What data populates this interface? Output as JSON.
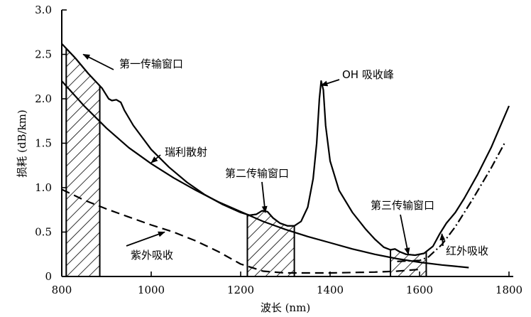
{
  "chart_data": {
    "type": "line",
    "xlabel": "波长 (nm)",
    "ylabel": "损耗 (dB/km)",
    "xlim": [
      800,
      1800
    ],
    "ylim": [
      0,
      3.0
    ],
    "x_ticks": [
      "800",
      "1000",
      "1200",
      "1400",
      "1600",
      "1800"
    ],
    "y_ticks": [
      "0",
      "0.5",
      "1.0",
      "1.5",
      "2.0",
      "2.5",
      "3.0"
    ],
    "grid": false,
    "series": [
      {
        "name": "",
        "style": "solid",
        "points": [
          [
            800,
            2.62
          ],
          [
            830,
            2.46
          ],
          [
            860,
            2.28
          ],
          [
            890,
            2.12
          ],
          [
            905,
            2.0
          ],
          [
            912,
            1.98
          ],
          [
            922,
            1.99
          ],
          [
            932,
            1.96
          ],
          [
            940,
            1.87
          ],
          [
            960,
            1.7
          ],
          [
            1000,
            1.43
          ],
          [
            1040,
            1.23
          ],
          [
            1080,
            1.06
          ],
          [
            1120,
            0.92
          ],
          [
            1160,
            0.81
          ],
          [
            1200,
            0.72
          ],
          [
            1220,
            0.69
          ],
          [
            1235,
            0.7
          ],
          [
            1248,
            0.74
          ],
          [
            1260,
            0.73
          ],
          [
            1272,
            0.66
          ],
          [
            1288,
            0.6
          ],
          [
            1305,
            0.57
          ],
          [
            1320,
            0.57
          ],
          [
            1335,
            0.62
          ],
          [
            1350,
            0.78
          ],
          [
            1362,
            1.1
          ],
          [
            1370,
            1.5
          ],
          [
            1376,
            2.0
          ],
          [
            1380,
            2.2
          ],
          [
            1385,
            2.1
          ],
          [
            1390,
            1.7
          ],
          [
            1400,
            1.3
          ],
          [
            1420,
            0.97
          ],
          [
            1450,
            0.72
          ],
          [
            1480,
            0.53
          ],
          [
            1500,
            0.42
          ],
          [
            1520,
            0.33
          ],
          [
            1535,
            0.3
          ],
          [
            1545,
            0.31
          ],
          [
            1555,
            0.28
          ],
          [
            1570,
            0.25
          ],
          [
            1590,
            0.24
          ],
          [
            1610,
            0.26
          ],
          [
            1630,
            0.34
          ],
          [
            1645,
            0.48
          ],
          [
            1660,
            0.6
          ],
          [
            1680,
            0.72
          ],
          [
            1700,
            0.88
          ],
          [
            1730,
            1.15
          ],
          [
            1760,
            1.45
          ],
          [
            1800,
            1.92
          ]
        ]
      },
      {
        "name": "瑞利散射",
        "style": "solid",
        "points": [
          [
            800,
            2.2
          ],
          [
            850,
            1.92
          ],
          [
            900,
            1.67
          ],
          [
            950,
            1.45
          ],
          [
            1000,
            1.27
          ],
          [
            1050,
            1.11
          ],
          [
            1100,
            0.97
          ],
          [
            1150,
            0.84
          ],
          [
            1200,
            0.73
          ],
          [
            1250,
            0.62
          ],
          [
            1300,
            0.53
          ],
          [
            1350,
            0.45
          ],
          [
            1400,
            0.38
          ],
          [
            1450,
            0.31
          ],
          [
            1500,
            0.25
          ],
          [
            1550,
            0.2
          ],
          [
            1600,
            0.16
          ],
          [
            1650,
            0.13
          ],
          [
            1710,
            0.1
          ]
        ]
      },
      {
        "name": "紫外吸收",
        "style": "dashed",
        "points": [
          [
            800,
            0.98
          ],
          [
            850,
            0.86
          ],
          [
            900,
            0.76
          ],
          [
            950,
            0.67
          ],
          [
            1000,
            0.58
          ],
          [
            1050,
            0.5
          ],
          [
            1100,
            0.4
          ],
          [
            1150,
            0.28
          ],
          [
            1200,
            0.14
          ],
          [
            1250,
            0.06
          ],
          [
            1300,
            0.04
          ],
          [
            1400,
            0.04
          ],
          [
            1500,
            0.05
          ],
          [
            1550,
            0.06
          ],
          [
            1600,
            0.08
          ]
        ]
      },
      {
        "name": "红外吸收",
        "style": "dashdot",
        "points": [
          [
            1550,
            0.17
          ],
          [
            1600,
            0.18
          ],
          [
            1620,
            0.22
          ],
          [
            1650,
            0.36
          ],
          [
            1680,
            0.56
          ],
          [
            1720,
            0.88
          ],
          [
            1760,
            1.22
          ],
          [
            1790,
            1.5
          ]
        ]
      }
    ],
    "shaded_regions": [
      {
        "name": "第一传输窗口",
        "x_range": [
          810,
          885
        ]
      },
      {
        "name": "第二传输窗口",
        "x_range": [
          1215,
          1320
        ]
      },
      {
        "name": "第三传输窗口",
        "x_range": [
          1535,
          1615
        ]
      }
    ],
    "annotations": [
      {
        "text": "第一传输窗口",
        "x": 848,
        "y": 2.5
      },
      {
        "text": "OH 吸收峰",
        "x": 1380,
        "y": 2.15
      },
      {
        "text": "瑞利散射",
        "x": 1000,
        "y": 1.28
      },
      {
        "text": "第二传输窗口",
        "x": 1255,
        "y": 0.72
      },
      {
        "text": "第三传输窗口",
        "x": 1575,
        "y": 0.25
      },
      {
        "text": "紫外吸收",
        "x": 1030,
        "y": 0.5
      },
      {
        "text": "红外吸收",
        "x": 1650,
        "y": 0.48
      }
    ]
  }
}
